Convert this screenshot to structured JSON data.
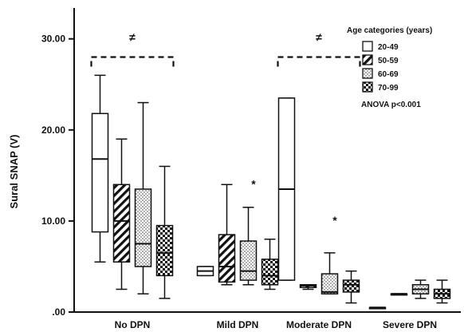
{
  "chart_data": {
    "type": "box",
    "ylabel": "Sural SNAP (V)",
    "ylim": [
      0,
      33
    ],
    "y_ticks": [
      {
        "value": 0,
        "label": ".00"
      },
      {
        "value": 10,
        "label": "10.00"
      },
      {
        "value": 20,
        "label": "20.00"
      },
      {
        "value": 30,
        "label": "30.00"
      }
    ],
    "categories": [
      "No DPN",
      "Mild DPN",
      "Moderate DPN",
      "Severe DPN"
    ],
    "legend": {
      "title": "Age categories (years)",
      "position": "top-right"
    },
    "series": [
      {
        "name": "20-49",
        "pattern": "white",
        "boxes": [
          {
            "min": 5.5,
            "q1": 8.8,
            "median": 16.8,
            "q3": 21.8,
            "max": 26.0
          },
          {
            "min": 4.0,
            "q1": 4.0,
            "median": 4.5,
            "q3": 5.0,
            "max": 5.0
          },
          {
            "min": 3.5,
            "q1": 3.5,
            "median": 13.5,
            "q3": 23.5,
            "max": 23.5
          },
          {
            "min": 0.5,
            "q1": 0.5,
            "median": 0.5,
            "q3": 0.5,
            "max": 0.5
          }
        ]
      },
      {
        "name": "50-59",
        "pattern": "diagonal",
        "boxes": [
          {
            "min": 2.5,
            "q1": 5.5,
            "median": 10.0,
            "q3": 14.0,
            "max": 19.0
          },
          {
            "min": 3.0,
            "q1": 3.3,
            "median": 5.0,
            "q3": 8.5,
            "max": 14.0
          },
          {
            "min": 2.5,
            "q1": 2.7,
            "median": 2.9,
            "q3": 3.0,
            "max": 3.0
          },
          {
            "min": 2.0,
            "q1": 2.0,
            "median": 2.0,
            "q3": 2.0,
            "max": 2.0
          }
        ]
      },
      {
        "name": "60-69",
        "pattern": "dotted",
        "boxes": [
          {
            "min": 2.0,
            "q1": 5.0,
            "median": 7.5,
            "q3": 13.5,
            "max": 23.0
          },
          {
            "min": 3.0,
            "q1": 3.5,
            "median": 4.5,
            "q3": 7.8,
            "max": 11.5
          },
          {
            "min": 2.0,
            "q1": 2.0,
            "median": 2.2,
            "q3": 4.2,
            "max": 6.5
          },
          {
            "min": 1.5,
            "q1": 2.0,
            "median": 2.5,
            "q3": 3.0,
            "max": 3.5
          }
        ]
      },
      {
        "name": "70-99",
        "pattern": "checker",
        "boxes": [
          {
            "min": 1.5,
            "q1": 4.0,
            "median": 6.5,
            "q3": 9.5,
            "max": 16.0
          },
          {
            "min": 2.5,
            "q1": 3.0,
            "median": 4.0,
            "q3": 5.8,
            "max": 8.0
          },
          {
            "min": 1.0,
            "q1": 2.2,
            "median": 3.0,
            "q3": 3.5,
            "max": 4.5
          },
          {
            "min": 1.0,
            "q1": 1.5,
            "median": 2.0,
            "q3": 2.5,
            "max": 3.5
          }
        ]
      }
    ],
    "annotations": {
      "neq_symbol": "≠",
      "star_symbol": "*",
      "brackets": [
        {
          "category": "No DPN",
          "label": "≠",
          "y": 28
        },
        {
          "category": "Moderate DPN",
          "label": "≠",
          "y": 28
        }
      ],
      "stars": [
        {
          "category": "Mild DPN",
          "y": 14.5
        },
        {
          "category": "Moderate DPN",
          "y": 10.5
        }
      ],
      "stat_text": "ANOVA p<0.001"
    },
    "grid": false
  }
}
